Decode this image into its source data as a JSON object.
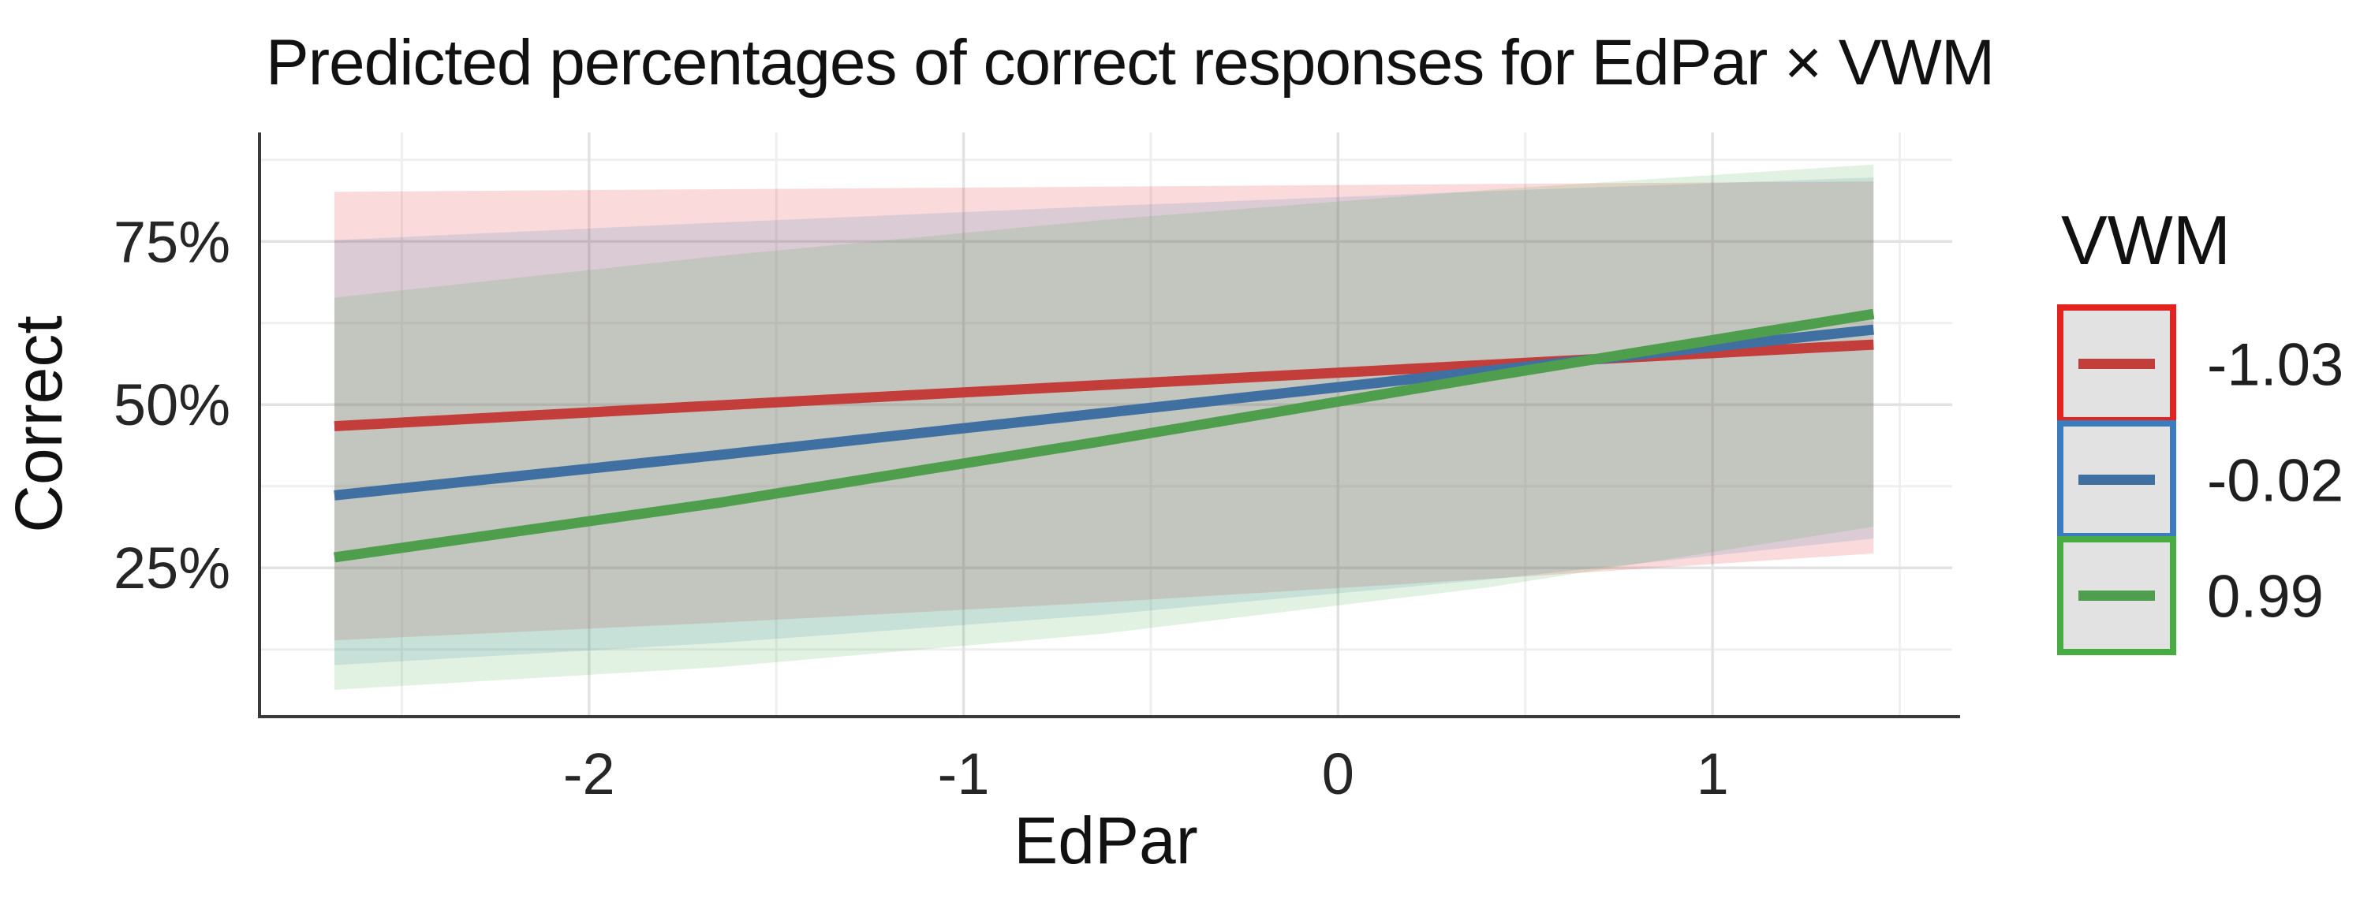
{
  "title": "Predicted percentages of correct responses for EdPar × VWM",
  "x_axis": {
    "label": "EdPar",
    "tick_labels": [
      "-2",
      "-1",
      "0",
      "1"
    ]
  },
  "y_axis": {
    "label": "Correct",
    "tick_labels": [
      "25%",
      "50%",
      "75%"
    ]
  },
  "legend": {
    "title": "VWM",
    "labels": [
      "-1.03",
      "-0.02",
      "0.99"
    ]
  },
  "colors": {
    "background": "#ffffff",
    "axis_line": "#3a3a3a",
    "grid_major": "#e2e2e2",
    "grid_minor": "#efefef",
    "legend_key_fill": "#e2e2e2"
  },
  "chart_data": {
    "type": "line",
    "title": "Predicted percentages of correct responses for EdPar × VWM",
    "xlabel": "EdPar",
    "ylabel": "Correct",
    "legend_title": "VWM",
    "legend_position": "right",
    "grid": true,
    "x_domain": [
      -2.88,
      1.64
    ],
    "y_domain": [
      2.2,
      91.7
    ],
    "x_ticks": [
      {
        "value": -2,
        "label": "-2"
      },
      {
        "value": -1,
        "label": "-1"
      },
      {
        "value": 0,
        "label": "0"
      },
      {
        "value": 1,
        "label": "1"
      }
    ],
    "x_minor_ticks": [
      -2.5,
      -1.5,
      -0.5,
      0.5,
      1.5
    ],
    "y_ticks": [
      {
        "value": 25,
        "label": "25%"
      },
      {
        "value": 50,
        "label": "50%"
      },
      {
        "value": 75,
        "label": "75%"
      }
    ],
    "y_minor_ticks": [
      12.5,
      37.5,
      62.5,
      87.5
    ],
    "ribbon_opacity": 0.16,
    "x": [
      -2.68,
      -1.65,
      -0.63,
      0.4,
      1.43
    ],
    "series": [
      {
        "name": "-1.03",
        "line_color": "#c33d3a",
        "ribbon_fill": "#e41a1c",
        "legend_border": "#e3241e",
        "values": [
          46.7,
          49.9,
          53.0,
          56.1,
          59.2
        ],
        "ci_upper": [
          82.6,
          83.0,
          83.4,
          83.8,
          84.2
        ],
        "ci_lower": [
          13.9,
          16.6,
          19.7,
          23.3,
          27.2
        ]
      },
      {
        "name": "-0.02",
        "line_color": "#3f70a1",
        "ribbon_fill": "#377eb8",
        "legend_border": "#3b7cbf",
        "values": [
          36.1,
          42.3,
          48.7,
          55.2,
          61.5
        ],
        "ci_upper": [
          75.2,
          77.9,
          80.4,
          82.7,
          84.8
        ],
        "ci_lower": [
          10.1,
          13.5,
          17.8,
          23.2,
          29.5
        ]
      },
      {
        "name": "0.99",
        "line_color": "#4f9e4e",
        "ribbon_fill": "#4daf4a",
        "legend_border": "#47ac41",
        "values": [
          26.6,
          35.0,
          44.4,
          54.3,
          63.9
        ],
        "ci_upper": [
          66.4,
          72.8,
          78.3,
          82.9,
          86.8
        ],
        "ci_lower": [
          6.3,
          9.8,
          14.9,
          22.0,
          31.3
        ]
      }
    ]
  }
}
